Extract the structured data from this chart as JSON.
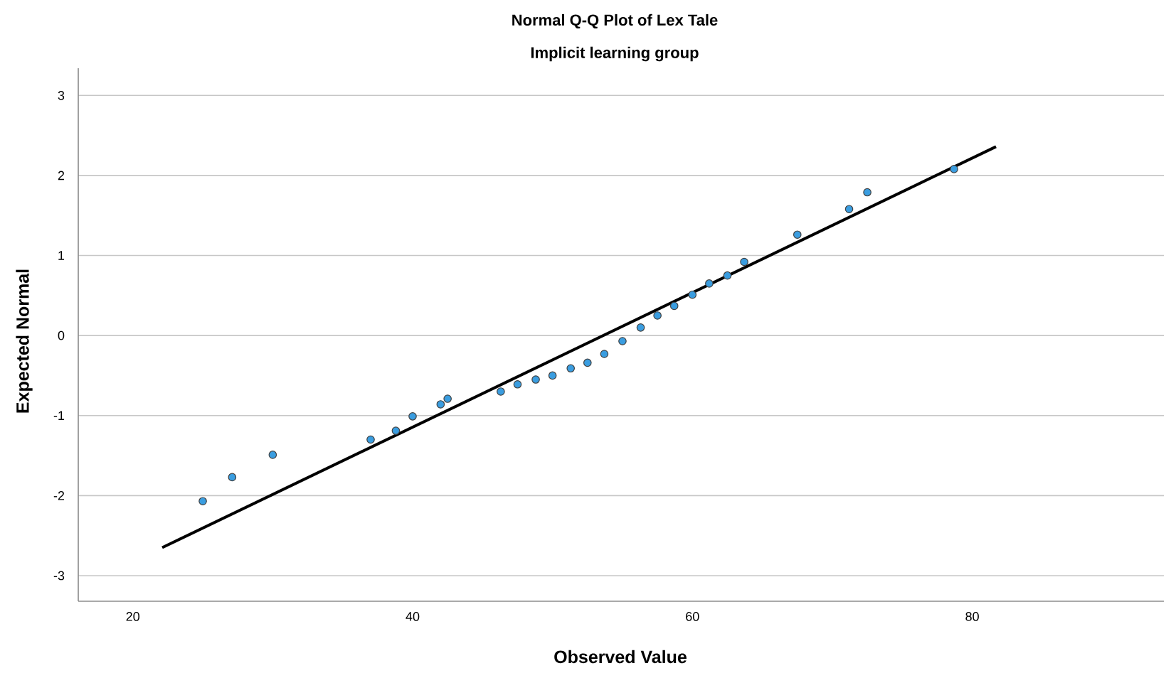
{
  "chart_data": {
    "type": "scatter",
    "title": "Normal Q-Q Plot of Lex Tale",
    "subtitle": "Implicit learning group",
    "xlabel": "Observed Value",
    "ylabel": "Expected Normal",
    "series": [
      {
        "color": "#3a9de0",
        "x": [
          25.0,
          27.1,
          30.0,
          37.0,
          38.8,
          40.0,
          42.0,
          42.5,
          46.3,
          47.5,
          48.8,
          50.0,
          51.3,
          52.5,
          53.7,
          55.0,
          56.3,
          57.5,
          58.7,
          60.0,
          61.2,
          62.5,
          63.7,
          67.5,
          71.2,
          72.5,
          78.7
        ],
        "values": [
          -2.07,
          -1.77,
          -1.49,
          -1.3,
          -1.19,
          -1.01,
          -0.86,
          -0.79,
          -0.7,
          -0.61,
          -0.55,
          -0.5,
          -0.41,
          -0.34,
          -0.23,
          -0.07,
          0.1,
          0.25,
          0.37,
          0.51,
          0.65,
          0.75,
          0.92,
          1.26,
          1.58,
          1.79,
          2.08
        ]
      },
      {
        "type": "line",
        "color": "#000000",
        "marker": "none",
        "x": [
          22.1,
          81.7
        ],
        "values": [
          -2.65,
          2.36
        ]
      }
    ],
    "xlim": [
      16.1,
      93.7
    ],
    "ylim": [
      -3.32,
      3.34
    ],
    "xticks": [
      20,
      40,
      60,
      80
    ],
    "yticks": [
      -3,
      -2,
      -1,
      0,
      1,
      2,
      3
    ],
    "grid": "y",
    "marker": "circle"
  }
}
